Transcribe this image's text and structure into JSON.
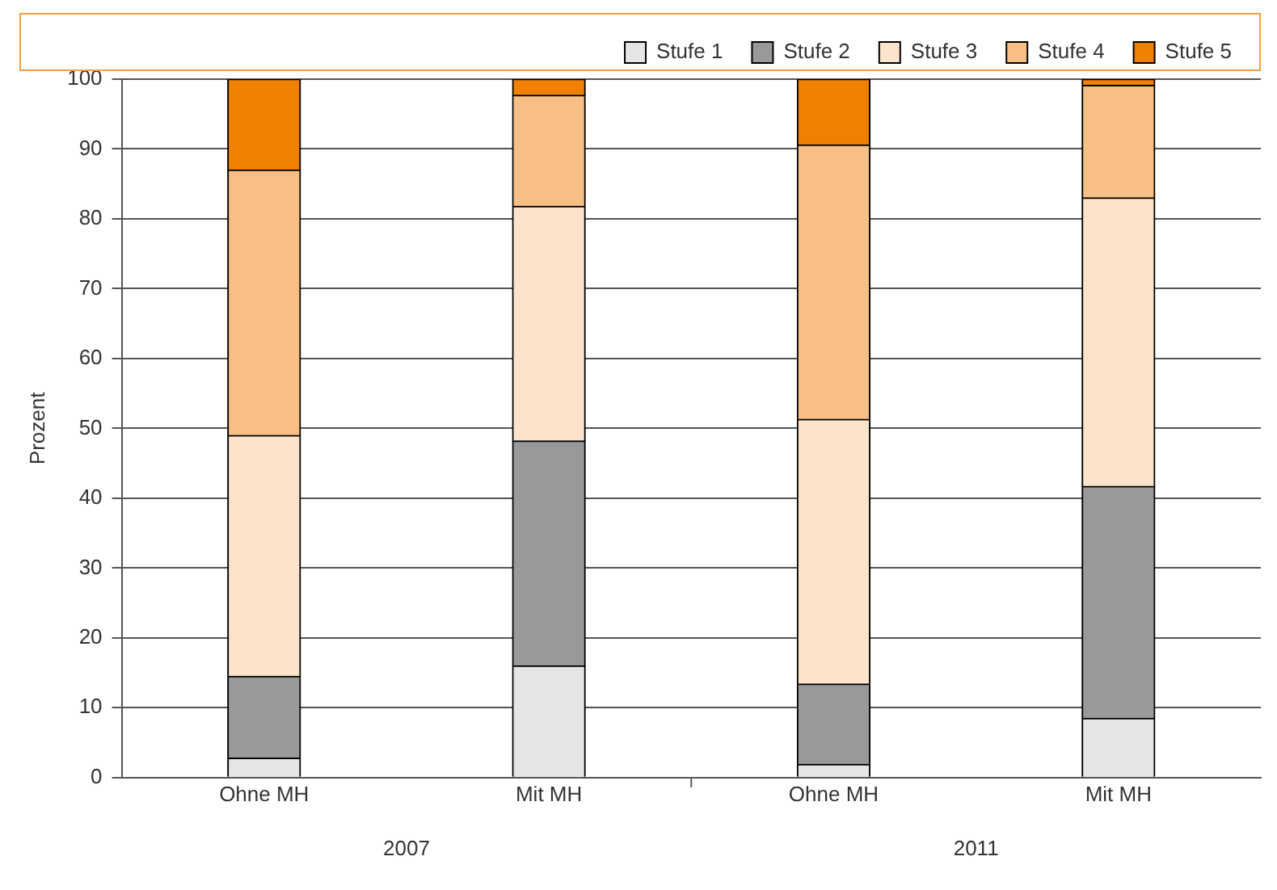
{
  "chart_data": {
    "type": "bar",
    "stacked": true,
    "ylabel": "Prozent",
    "categories": [
      "Ohne MH",
      "Mit MH",
      "Ohne MH",
      "Mit MH"
    ],
    "series": [
      {
        "name": "Stufe 1",
        "color": "#e5e5e5",
        "values": [
          2.8,
          16,
          1.9,
          8.5
        ]
      },
      {
        "name": "Stufe 2",
        "color": "#999999",
        "values": [
          11.7,
          32.2,
          11.5,
          33.2
        ]
      },
      {
        "name": "Stufe 3",
        "color": "#fce4cc",
        "values": [
          34.5,
          33.6,
          37.9,
          41.3
        ]
      },
      {
        "name": "Stufe 4",
        "color": "#f7be85",
        "values": [
          38,
          15.9,
          39.3,
          16.1
        ]
      },
      {
        "name": "Stufe 5",
        "color": "#f08000",
        "values": [
          13,
          2.3,
          9.4,
          0.9
        ]
      }
    ],
    "ylim": [
      0,
      100
    ],
    "yticks": [
      0,
      10,
      20,
      30,
      40,
      50,
      60,
      70,
      80,
      90,
      100
    ],
    "grid": "y",
    "legend": "top right",
    "annotations": [
      "2007",
      "2011"
    ]
  }
}
